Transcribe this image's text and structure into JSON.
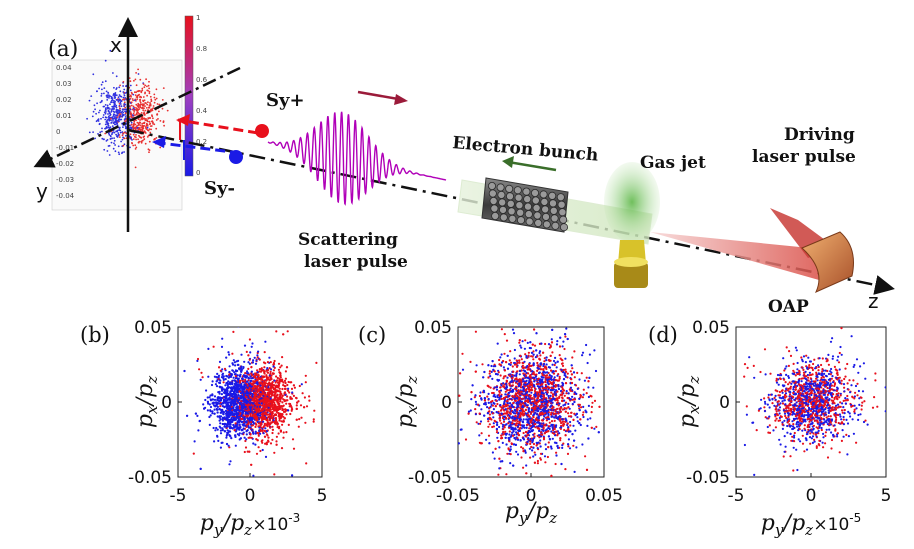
{
  "figure": {
    "panel_a": {
      "label": "(a)",
      "axis_x": "x",
      "axis_y": "y",
      "axis_z": "z",
      "sy_plus": "Sy+",
      "sy_minus": "Sy-",
      "electron_bunch": "Electron bunch",
      "gas_jet": "Gas jet",
      "driving_line1": "Driving",
      "driving_line2": "laser pulse",
      "scattering_line1": "Scattering",
      "scattering_line2": "laser pulse",
      "oap": "OAP",
      "inset_ticks": [
        "0.04",
        "0.03",
        "0.02",
        "0.01",
        "0",
        "-0.01",
        "-0.02",
        "-0.03",
        "-0.04"
      ],
      "colorbar_ticks": [
        "1",
        "0.8",
        "0.6",
        "0.4",
        "0.2",
        "0"
      ]
    },
    "colors": {
      "red": "#e8101c",
      "blue": "#1a1ae6",
      "purple": "#b000b8",
      "arrow_red": "#9b1b3a",
      "arrow_green": "#3a6e2a",
      "jet_green": "#7cc46a"
    }
  },
  "chart_data": [
    {
      "type": "scatter",
      "panel": "(b)",
      "ylabel_main": "p",
      "ylabel_sub1": "x",
      "ylabel_sub2": "z",
      "xlabel_main": "p",
      "xlabel_sub1": "y",
      "xlabel_sub2": "z",
      "xlabel_suffix": "×10",
      "xlabel_exp": "-3",
      "xlim": [
        -5,
        5
      ],
      "ylim": [
        -0.05,
        0.05
      ],
      "xticks": [
        "-5",
        "0",
        "5"
      ],
      "yticks": [
        "0.05",
        "0",
        "-0.05"
      ],
      "series": [
        {
          "name": "Sy+",
          "color": "#e8101c",
          "center_x": 0.9,
          "spread_x": 0.9,
          "center_y": 0.0,
          "spread_y": 0.011,
          "count": 1400
        },
        {
          "name": "Sy-",
          "color": "#1a1ae6",
          "center_x": -0.8,
          "spread_x": 0.9,
          "center_y": 0.0,
          "spread_y": 0.011,
          "count": 1400
        }
      ]
    },
    {
      "type": "scatter",
      "panel": "(c)",
      "ylabel_main": "p",
      "ylabel_sub1": "x",
      "ylabel_sub2": "z",
      "xlabel_main": "p",
      "xlabel_sub1": "y",
      "xlabel_sub2": "z",
      "xlabel_suffix": "",
      "xlabel_exp": "",
      "xlim": [
        -0.05,
        0.05
      ],
      "ylim": [
        -0.05,
        0.05
      ],
      "xticks": [
        "-0.05",
        "0",
        "0.05"
      ],
      "yticks": [
        "0.05",
        "0",
        "-0.05"
      ],
      "series": [
        {
          "name": "Sy+",
          "color": "#e8101c",
          "center_x": 0.0,
          "spread_x": 0.016,
          "center_y": 0.0,
          "spread_y": 0.016,
          "count": 1300
        },
        {
          "name": "Sy-",
          "color": "#1a1ae6",
          "center_x": 0.0,
          "spread_x": 0.016,
          "center_y": 0.0,
          "spread_y": 0.016,
          "count": 1300
        }
      ]
    },
    {
      "type": "scatter",
      "panel": "(d)",
      "ylabel_main": "p",
      "ylabel_sub1": "x",
      "ylabel_sub2": "z",
      "xlabel_main": "p",
      "xlabel_sub1": "y",
      "xlabel_sub2": "z",
      "xlabel_suffix": "×10",
      "xlabel_exp": "-5",
      "xlim": [
        -5,
        5
      ],
      "ylim": [
        -0.05,
        0.05
      ],
      "xticks": [
        "-5",
        "0",
        "5"
      ],
      "yticks": [
        "0.05",
        "0",
        "-0.05"
      ],
      "series": [
        {
          "name": "Sy+",
          "color": "#e8101c",
          "center_x": 0.0,
          "spread_x": 1.3,
          "center_y": 0.0,
          "spread_y": 0.012,
          "count": 700
        },
        {
          "name": "Sy-",
          "color": "#1a1ae6",
          "center_x": 0.0,
          "spread_x": 1.3,
          "center_y": 0.0,
          "spread_y": 0.012,
          "count": 700
        }
      ]
    }
  ]
}
